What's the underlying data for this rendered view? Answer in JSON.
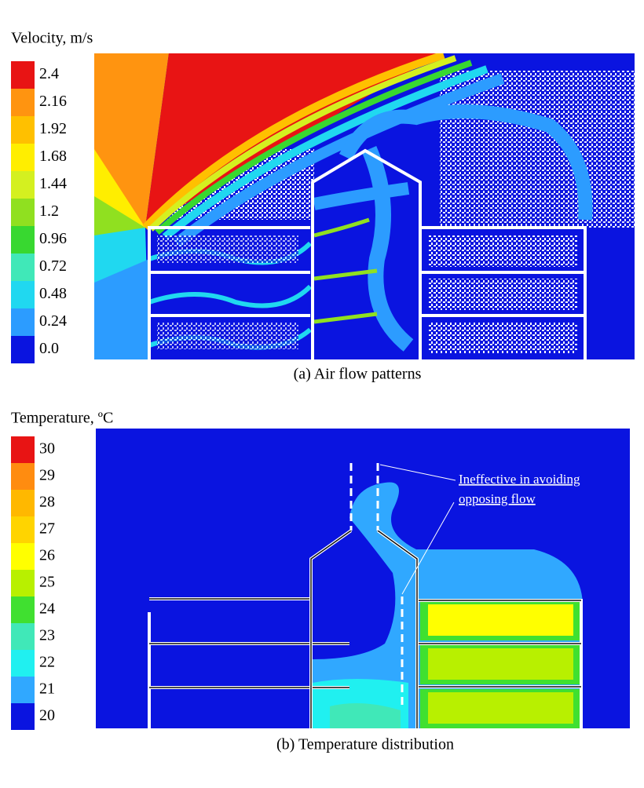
{
  "panels": [
    {
      "legend": {
        "title": "Velocity, m/s",
        "labels": [
          "2.4",
          "2.16",
          "1.92",
          "1.68",
          "1.44",
          "1.2",
          "0.96",
          "0.72",
          "0.48",
          "0.24",
          "0.0"
        ],
        "colors": [
          "#e81414",
          "#ff9410",
          "#ffc000",
          "#ffee00",
          "#d4f020",
          "#90e020",
          "#38d830",
          "#40e8b8",
          "#20d8f0",
          "#2c9cff",
          "#0a14e0"
        ]
      },
      "caption": "(a) Air flow patterns"
    },
    {
      "legend": {
        "title": "Temperature, ºC",
        "labels": [
          "30",
          "29",
          "28",
          "27",
          "26",
          "25",
          "24",
          "23",
          "22",
          "21",
          "20"
        ],
        "colors": [
          "#e81414",
          "#ff8c10",
          "#ffb800",
          "#ffd400",
          "#ffff00",
          "#b8f000",
          "#40e030",
          "#40e8b8",
          "#20f0f0",
          "#30a8ff",
          "#0a14e0"
        ]
      },
      "caption": "(b) Temperature distribution",
      "annotation": [
        "Ineffective in avoiding",
        "opposing flow"
      ]
    }
  ]
}
